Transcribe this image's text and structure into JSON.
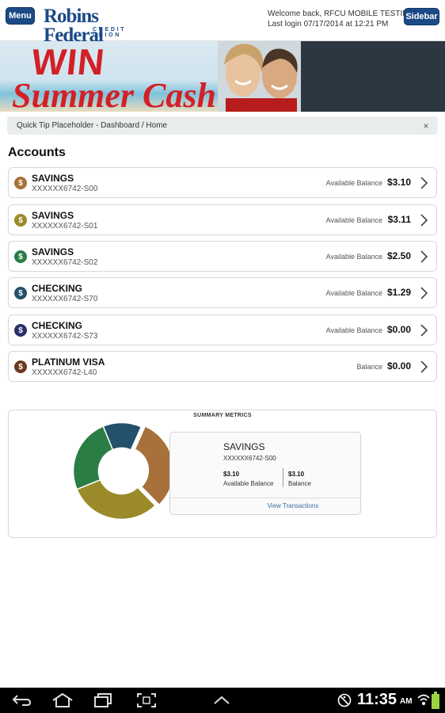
{
  "header": {
    "menu_label": "Menu",
    "sidebar_label": "Sidebar",
    "logo_main": "Robins Federal",
    "logo_sub": "CREDIT UNION",
    "welcome_line": "Welcome back, RFCU MOBILE TESTING",
    "last_login": "Last login 07/17/2014 at 12:21 PM"
  },
  "banner": {
    "headline": "WIN",
    "subline": "Summer Cash!"
  },
  "tip": {
    "text": "Quick Tip Placeholder - Dashboard / Home",
    "close_glyph": "×"
  },
  "accounts_title": "Accounts",
  "accounts": [
    {
      "name": "SAVINGS",
      "number": "XXXXXX6742-S00",
      "balance_label": "Available Balance",
      "balance": "$3.10",
      "color": "#a8703a"
    },
    {
      "name": "SAVINGS",
      "number": "XXXXXX6742-S01",
      "balance_label": "Available Balance",
      "balance": "$3.11",
      "color": "#9a8a2a"
    },
    {
      "name": "SAVINGS",
      "number": "XXXXXX6742-S02",
      "balance_label": "Available Balance",
      "balance": "$2.50",
      "color": "#2a7d45"
    },
    {
      "name": "CHECKING",
      "number": "XXXXXX6742-S70",
      "balance_label": "Available Balance",
      "balance": "$1.29",
      "color": "#23506b"
    },
    {
      "name": "CHECKING",
      "number": "XXXXXX6742-S73",
      "balance_label": "Available Balance",
      "balance": "$0.00",
      "color": "#2a2f6b"
    },
    {
      "name": "PLATINUM VISA",
      "number": "XXXXXX6742-L40",
      "balance_label": "Balance",
      "balance": "$0.00",
      "color": "#6b3a1f"
    }
  ],
  "coin_glyph": "$",
  "summary": {
    "title": "SUMMARY METRICS",
    "card": {
      "name": "SAVINGS",
      "number": "XXXXXX6742-S00",
      "available_value": "$3.10",
      "available_label": "Available Balance",
      "balance_value": "$3.10",
      "balance_label": "Balance",
      "link": "View Transactions"
    },
    "donut": [
      {
        "account": "SAVINGS S00",
        "value": 3.1,
        "color": "#a8703a"
      },
      {
        "account": "SAVINGS S01",
        "value": 3.11,
        "color": "#9a8a2a"
      },
      {
        "account": "SAVINGS S02",
        "value": 2.5,
        "color": "#2a7d45"
      },
      {
        "account": "CHECKING S70",
        "value": 1.29,
        "color": "#23506b"
      }
    ]
  },
  "status_bar": {
    "time": "11:35",
    "ampm": "AM"
  }
}
